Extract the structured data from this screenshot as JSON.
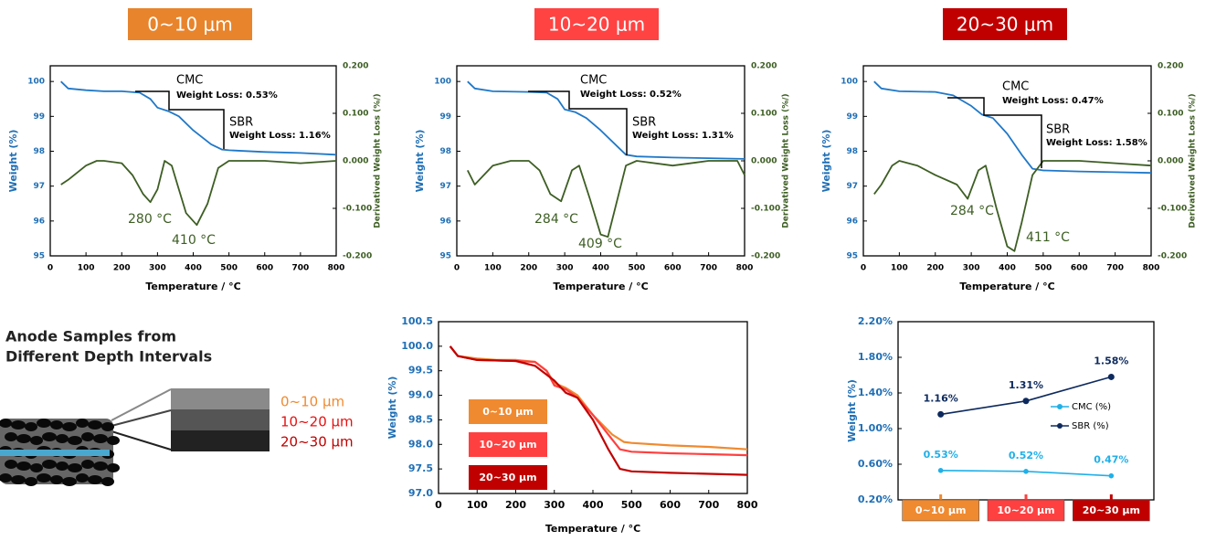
{
  "chart_data": [
    {
      "type": "line",
      "title": "0~10 μm",
      "title_color": "#e8842c",
      "xlabel": "Temperature / °C",
      "ylabel": "Weight (%)",
      "y2label": "Derivatived Weight Loss (%/)",
      "xlim": [
        0,
        800
      ],
      "xticks": [
        0,
        100,
        200,
        300,
        400,
        500,
        600,
        700,
        800
      ],
      "ylim": [
        95,
        100.45
      ],
      "yticks": [
        95,
        96,
        97,
        98,
        99,
        100
      ],
      "y2lim": [
        -0.2,
        0.2
      ],
      "y2ticks": [
        {
          "value": -0.2,
          "label": "-0.200"
        },
        {
          "value": -0.1,
          "label": "-0.100"
        },
        {
          "value": 0,
          "label": "0.000"
        },
        {
          "value": 0.1,
          "label": "0.100"
        },
        {
          "value": 0.2,
          "label": "0.200"
        }
      ],
      "annotations": [
        "CMC",
        "Weight Loss: 0.53%",
        "SBR",
        "Weight Loss: 1.16%",
        "280 °C",
        "410 °C"
      ],
      "series": [
        {
          "color": "#1f78c8",
          "x": [
            30,
            50,
            100,
            150,
            200,
            250,
            280,
            300,
            330,
            360,
            400,
            450,
            480,
            500,
            600,
            700,
            800
          ],
          "values": [
            100.0,
            99.8,
            99.75,
            99.72,
            99.72,
            99.68,
            99.5,
            99.25,
            99.15,
            99.0,
            98.6,
            98.2,
            98.05,
            98.03,
            97.98,
            97.95,
            97.9
          ]
        },
        {
          "color": "#3d5e23",
          "axis": "y2",
          "x": [
            30,
            50,
            100,
            130,
            150,
            200,
            230,
            260,
            280,
            300,
            320,
            340,
            360,
            380,
            410,
            440,
            470,
            500,
            600,
            700,
            800
          ],
          "values": [
            -0.05,
            -0.04,
            -0.01,
            0.0,
            0.0,
            -0.005,
            -0.03,
            -0.07,
            -0.087,
            -0.06,
            0.0,
            -0.01,
            -0.06,
            -0.11,
            -0.135,
            -0.09,
            -0.015,
            0.0,
            0.0,
            -0.005,
            0.0
          ]
        }
      ]
    },
    {
      "type": "line",
      "title": "10~20 μm",
      "title_color": "#ff4343",
      "xlabel": "Temperature / °C",
      "ylabel": "Weight (%)",
      "y2label": "Derivatived Weight Loss (%/)",
      "xlim": [
        0,
        800
      ],
      "xticks": [
        0,
        100,
        200,
        300,
        400,
        500,
        600,
        700,
        800
      ],
      "ylim": [
        95,
        100.45
      ],
      "yticks": [
        95,
        96,
        97,
        98,
        99,
        100
      ],
      "y2lim": [
        -0.2,
        0.2
      ],
      "y2ticks": [
        {
          "value": -0.2,
          "label": "-0.200"
        },
        {
          "value": -0.1,
          "label": "-0.100"
        },
        {
          "value": 0,
          "label": "0.000"
        },
        {
          "value": 0.1,
          "label": "0.100"
        },
        {
          "value": 0.2,
          "label": "0.200"
        }
      ],
      "annotations": [
        "CMC",
        "Weight Loss: 0.52%",
        "SBR",
        "Weight Loss: 1.31%",
        "284 °C",
        "409 °C"
      ],
      "series": [
        {
          "color": "#1f78c8",
          "x": [
            30,
            50,
            100,
            200,
            250,
            280,
            300,
            330,
            360,
            400,
            450,
            470,
            500,
            600,
            700,
            800
          ],
          "values": [
            100.0,
            99.8,
            99.72,
            99.7,
            99.68,
            99.5,
            99.2,
            99.12,
            98.95,
            98.6,
            98.1,
            97.9,
            97.85,
            97.82,
            97.8,
            97.78
          ]
        },
        {
          "color": "#3d5e23",
          "axis": "y2",
          "x": [
            30,
            50,
            100,
            150,
            200,
            230,
            260,
            290,
            320,
            340,
            370,
            400,
            420,
            440,
            470,
            500,
            600,
            700,
            780,
            800
          ],
          "values": [
            -0.02,
            -0.05,
            -0.01,
            0.0,
            0.0,
            -0.02,
            -0.07,
            -0.085,
            -0.02,
            -0.01,
            -0.08,
            -0.155,
            -0.16,
            -0.1,
            -0.01,
            0.0,
            -0.01,
            0.0,
            0.0,
            -0.03
          ]
        }
      ]
    },
    {
      "type": "line",
      "title": "20~30 μm",
      "title_color": "#c00000",
      "xlabel": "Temperature / °C",
      "ylabel": "Weight (%)",
      "y2label": "Derivatived Weight Loss (%/)",
      "xlim": [
        0,
        800
      ],
      "xticks": [
        0,
        100,
        200,
        300,
        400,
        500,
        600,
        700,
        800
      ],
      "ylim": [
        95,
        100.45
      ],
      "yticks": [
        95,
        96,
        97,
        98,
        99,
        100
      ],
      "y2lim": [
        -0.2,
        0.2
      ],
      "y2ticks": [
        {
          "value": -0.2,
          "label": "-0.200"
        },
        {
          "value": -0.1,
          "label": "-0.100"
        },
        {
          "value": 0,
          "label": "0.000"
        },
        {
          "value": 0.1,
          "label": "0.100"
        },
        {
          "value": 0.2,
          "label": "0.200"
        }
      ],
      "annotations": [
        "CMC",
        "Weight Loss: 0.47%",
        "SBR",
        "Weight Loss: 1.58%",
        "284 °C",
        "411 °C"
      ],
      "series": [
        {
          "color": "#1f78c8",
          "x": [
            30,
            50,
            100,
            200,
            250,
            300,
            330,
            360,
            400,
            440,
            470,
            500,
            600,
            700,
            800
          ],
          "values": [
            100.0,
            99.8,
            99.72,
            99.7,
            99.6,
            99.3,
            99.05,
            98.95,
            98.5,
            97.9,
            97.5,
            97.45,
            97.42,
            97.4,
            97.38
          ]
        },
        {
          "color": "#3d5e23",
          "axis": "y2",
          "x": [
            30,
            50,
            80,
            100,
            150,
            200,
            260,
            290,
            320,
            340,
            370,
            400,
            420,
            440,
            470,
            500,
            600,
            700,
            800
          ],
          "values": [
            -0.07,
            -0.05,
            -0.01,
            0.0,
            -0.01,
            -0.03,
            -0.05,
            -0.08,
            -0.02,
            -0.01,
            -0.1,
            -0.18,
            -0.19,
            -0.13,
            -0.03,
            0.0,
            0.0,
            -0.005,
            -0.01
          ]
        }
      ]
    },
    {
      "type": "line",
      "xlabel": "Temperature / °C",
      "ylabel": "Weight (%)",
      "xlim": [
        0,
        800
      ],
      "xticks": [
        0,
        100,
        200,
        300,
        400,
        500,
        600,
        700,
        800
      ],
      "ylim": [
        97,
        100.5
      ],
      "yticks": [
        {
          "value": 97,
          "label": "97.0"
        },
        {
          "value": 97.5,
          "label": "97.5"
        },
        {
          "value": 98,
          "label": "98.0"
        },
        {
          "value": 98.5,
          "label": "98.5"
        },
        {
          "value": 99,
          "label": "99.0"
        },
        {
          "value": 99.5,
          "label": "99.5"
        },
        {
          "value": 100,
          "label": "100.0"
        },
        {
          "value": 100.5,
          "label": "100.5"
        }
      ],
      "series": [
        {
          "name": "0~10 μm",
          "color": "#f08a30",
          "x": [
            30,
            50,
            100,
            150,
            200,
            250,
            280,
            300,
            330,
            360,
            400,
            450,
            480,
            500,
            600,
            700,
            800
          ],
          "values": [
            100.0,
            99.8,
            99.75,
            99.72,
            99.72,
            99.68,
            99.5,
            99.25,
            99.15,
            99.0,
            98.6,
            98.2,
            98.05,
            98.03,
            97.98,
            97.95,
            97.9
          ]
        },
        {
          "name": "10~20 μm",
          "color": "#ff4040",
          "x": [
            30,
            50,
            100,
            200,
            250,
            280,
            300,
            330,
            360,
            400,
            450,
            470,
            500,
            600,
            700,
            800
          ],
          "values": [
            100.0,
            99.8,
            99.72,
            99.7,
            99.68,
            99.5,
            99.2,
            99.12,
            98.95,
            98.6,
            98.1,
            97.9,
            97.85,
            97.82,
            97.8,
            97.78
          ]
        },
        {
          "name": "20~30 μm",
          "color": "#c00000",
          "x": [
            30,
            50,
            100,
            200,
            250,
            300,
            330,
            360,
            400,
            440,
            470,
            500,
            600,
            700,
            800
          ],
          "values": [
            100.0,
            99.8,
            99.72,
            99.7,
            99.6,
            99.3,
            99.05,
            98.95,
            98.5,
            97.9,
            97.5,
            97.45,
            97.42,
            97.4,
            97.38
          ]
        }
      ]
    },
    {
      "type": "line",
      "ylabel": "Weight (%)",
      "categories": [
        "0~10 μm",
        "10~20 μm",
        "20~30 μm"
      ],
      "category_colors": [
        "#f08a30",
        "#ff4040",
        "#c00000"
      ],
      "ylim": [
        0.2,
        2.2
      ],
      "yticks": [
        {
          "value": 0.2,
          "label": "0.20%"
        },
        {
          "value": 0.6,
          "label": "0.60%"
        },
        {
          "value": 1.0,
          "label": "1.00%"
        },
        {
          "value": 1.4,
          "label": "1.40%"
        },
        {
          "value": 1.8,
          "label": "1.80%"
        },
        {
          "value": 2.2,
          "label": "2.20%"
        }
      ],
      "series": [
        {
          "name": "CMC (%)",
          "color": "#20b0e8",
          "values": [
            0.53,
            0.52,
            0.47
          ],
          "value_labels": [
            "0.53%",
            "0.52%",
            "0.47%"
          ]
        },
        {
          "name": "SBR (%)",
          "color": "#0d2a5e",
          "values": [
            1.16,
            1.31,
            1.58
          ],
          "value_labels": [
            "1.16%",
            "1.31%",
            "1.58%"
          ]
        }
      ]
    }
  ],
  "diagram": {
    "title_lines": [
      "Anode Samples from",
      "Different Depth Intervals"
    ],
    "layers": [
      {
        "label": "0~10 μm",
        "color": "#f08a30"
      },
      {
        "label": "10~20 μm",
        "color": "#e81010"
      },
      {
        "label": "20~30 μm",
        "color": "#c00000"
      }
    ]
  }
}
